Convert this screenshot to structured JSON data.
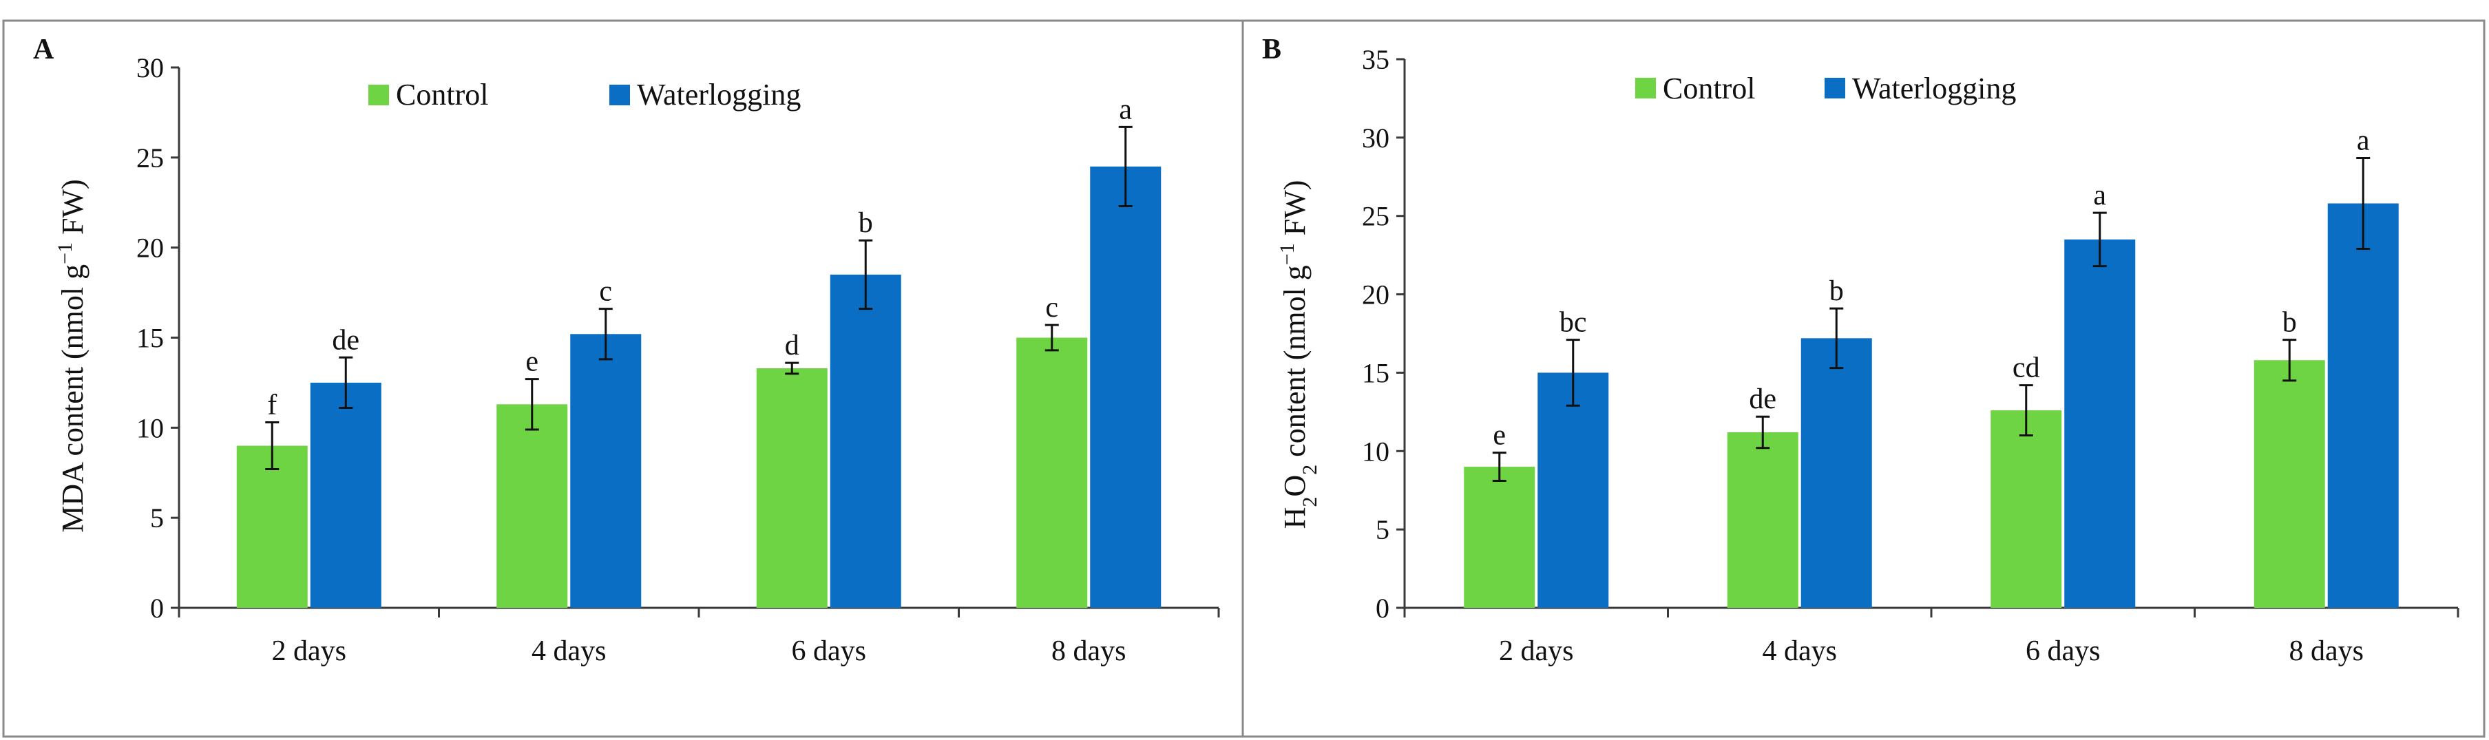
{
  "colors": {
    "control": "#6fd444",
    "waterlogging": "#0a6fc4",
    "axis": "#3a3a3a",
    "frame": "#8a8a8a"
  },
  "chart_data": [
    {
      "panel": "A",
      "type": "bar",
      "ylabel_main": "MDA content (nmol g",
      "ylabel_sup": "−1",
      "ylabel_tail": " FW)",
      "ylim": [
        0,
        30
      ],
      "ytick_step": 5,
      "yticks": [
        "0",
        "5",
        "10",
        "15",
        "20",
        "25",
        "30"
      ],
      "categories": [
        "2 days",
        "4 days",
        "6 days",
        "8 days"
      ],
      "legend": [
        "Control",
        "Waterlogging"
      ],
      "legend_position": "top",
      "grid": false,
      "series": [
        {
          "name": "Control",
          "values": [
            9.0,
            11.3,
            13.3,
            15.0
          ],
          "errors": [
            1.3,
            1.4,
            0.3,
            0.7
          ],
          "letters": [
            "f",
            "e",
            "d",
            "c"
          ]
        },
        {
          "name": "Waterlogging",
          "values": [
            12.5,
            15.2,
            18.5,
            24.5
          ],
          "errors": [
            1.4,
            1.4,
            1.9,
            2.2
          ],
          "letters": [
            "de",
            "c",
            "b",
            "a"
          ]
        }
      ]
    },
    {
      "panel": "B",
      "type": "bar",
      "ylabel_main": "H",
      "ylabel_sub1": "2",
      "ylabel_mid": "O",
      "ylabel_sub2": "2",
      "ylabel_rest": " content (nmol g",
      "ylabel_sup": "−1",
      "ylabel_tail": " FW)",
      "ylim": [
        0,
        35
      ],
      "ytick_step": 5,
      "yticks": [
        "0",
        "5",
        "10",
        "15",
        "20",
        "25",
        "30",
        "35"
      ],
      "categories": [
        "2 days",
        "4 days",
        "6 days",
        "8 days"
      ],
      "legend": [
        "Control",
        "Waterlogging"
      ],
      "legend_position": "top",
      "grid": false,
      "series": [
        {
          "name": "Control",
          "values": [
            9.0,
            11.2,
            12.6,
            15.8
          ],
          "errors": [
            0.9,
            1.0,
            1.6,
            1.3
          ],
          "letters": [
            "e",
            "de",
            "cd",
            "b"
          ]
        },
        {
          "name": "Waterlogging",
          "values": [
            15.0,
            17.2,
            23.5,
            25.8
          ],
          "errors": [
            2.1,
            1.9,
            1.7,
            2.9
          ],
          "letters": [
            "bc",
            "b",
            "a",
            "a"
          ]
        }
      ]
    }
  ]
}
